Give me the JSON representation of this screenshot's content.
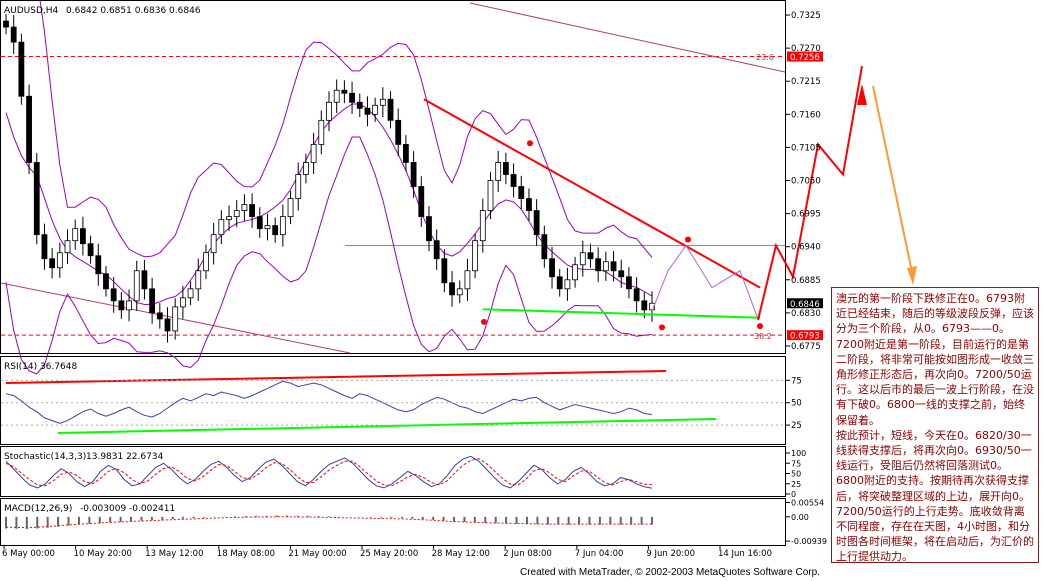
{
  "chart_data": [
    {
      "type": "candlestick",
      "symbol_label": "AUDUSD,H4",
      "ohlc_label": "0.6842 0.6851 0.6836 0.6846",
      "y_ticks": [
        "0.7325",
        "0.7270",
        "0.7215",
        "0.7160",
        "0.7105",
        "0.7050",
        "0.6995",
        "0.6940",
        "0.6885",
        "0.6830",
        "0.6775"
      ],
      "ylim": [
        0.6765,
        0.7345
      ],
      "price_tags": {
        "current": "0.6846",
        "high_level": "0.7256",
        "low_level": "0.6793"
      },
      "fib_labels": {
        "top": "23.6",
        "bottom": "38.2"
      },
      "x_ticks": [
        "6 May 00:00",
        "10 May 20:00",
        "13 May 12:00",
        "18 May 08:00",
        "21 May 00:00",
        "25 May 20:00",
        "28 May 12:00",
        "2 Jun 08:00",
        "7 Jun 04:00",
        "9 Jun 20:00",
        "14 Jun 16:00"
      ],
      "close_path": [
        0.7305,
        0.728,
        0.719,
        0.708,
        0.696,
        0.692,
        0.6905,
        0.693,
        0.695,
        0.697,
        0.6945,
        0.6925,
        0.6895,
        0.687,
        0.685,
        0.6835,
        0.685,
        0.69,
        0.687,
        0.683,
        0.682,
        0.68,
        0.684,
        0.6855,
        0.687,
        0.69,
        0.693,
        0.696,
        0.6985,
        0.699,
        0.7,
        0.701,
        0.699,
        0.697,
        0.6975,
        0.696,
        0.699,
        0.702,
        0.706,
        0.708,
        0.711,
        0.715,
        0.718,
        0.72,
        0.7195,
        0.718,
        0.717,
        0.716,
        0.7175,
        0.7185,
        0.715,
        0.711,
        0.708,
        0.704,
        0.699,
        0.695,
        0.692,
        0.688,
        0.686,
        0.687,
        0.69,
        0.695,
        0.7,
        0.705,
        0.708,
        0.706,
        0.704,
        0.702,
        0.7,
        0.696,
        0.692,
        0.689,
        0.687,
        0.6885,
        0.691,
        0.693,
        0.692,
        0.69,
        0.6915,
        0.69,
        0.689,
        0.687,
        0.685,
        0.6835,
        0.6846
      ]
    },
    {
      "type": "line",
      "title": "RSI(14) 36.7648",
      "y_ticks": [
        "75",
        "50",
        "25"
      ],
      "ylim": [
        5,
        100
      ],
      "values": [
        60,
        58,
        52,
        45,
        40,
        33,
        30,
        27,
        30,
        35,
        40,
        43,
        38,
        35,
        38,
        42,
        45,
        40,
        36,
        34,
        38,
        44,
        50,
        55,
        52,
        56,
        60,
        58,
        62,
        60,
        58,
        55,
        58,
        62,
        66,
        70,
        74,
        72,
        68,
        70,
        72,
        70,
        66,
        62,
        58,
        55,
        60,
        58,
        54,
        50,
        46,
        42,
        40,
        42,
        48,
        52,
        56,
        54,
        50,
        46,
        44,
        40,
        38,
        42,
        46,
        50,
        54,
        52,
        55,
        56,
        50,
        46,
        42,
        45,
        48,
        46,
        44,
        42,
        40,
        38,
        40,
        44,
        42,
        38,
        36.8
      ]
    },
    {
      "type": "line",
      "title": "Stochastic(14,3,3)",
      "label_values": "13.9831 22.6734",
      "y_ticks": [
        "100",
        "75",
        "50",
        "25",
        "0"
      ],
      "ylim": [
        0,
        100
      ],
      "series": [
        {
          "values": [
            80,
            60,
            40,
            22,
            15,
            25,
            45,
            62,
            50,
            30,
            18,
            30,
            55,
            70,
            60,
            35,
            20,
            25,
            45,
            65,
            75,
            60,
            40,
            25,
            35,
            55,
            72,
            80,
            65,
            45,
            30,
            40,
            60,
            78,
            85,
            70,
            50,
            30,
            20,
            35,
            55,
            72,
            80,
            88,
            75,
            55,
            35,
            20,
            15,
            25,
            40,
            55,
            45,
            30,
            18,
            25,
            45,
            70,
            85,
            92,
            80,
            60,
            40,
            22,
            15,
            30,
            50,
            70,
            60,
            40,
            25,
            35,
            55,
            65,
            50,
            30,
            20,
            25,
            40,
            35,
            25,
            18,
            14
          ]
        },
        {
          "values": [
            75,
            66,
            50,
            35,
            22,
            20,
            32,
            48,
            54,
            45,
            30,
            25,
            38,
            55,
            62,
            52,
            35,
            25,
            32,
            48,
            62,
            66,
            55,
            38,
            32,
            42,
            58,
            72,
            70,
            55,
            40,
            36,
            48,
            64,
            76,
            75,
            60,
            42,
            28,
            28,
            42,
            58,
            70,
            80,
            80,
            65,
            48,
            32,
            22,
            20,
            30,
            42,
            48,
            40,
            28,
            22,
            32,
            52,
            70,
            82,
            86,
            74,
            56,
            38,
            24,
            22,
            36,
            56,
            62,
            52,
            36,
            30,
            44,
            56,
            56,
            42,
            28,
            22,
            30,
            36,
            30,
            24,
            22.7
          ]
        }
      ]
    },
    {
      "type": "bar",
      "title": "MACD(12,26,9)",
      "label_values": "-0.003009 -0.002411",
      "y_ticks": [
        "0.00554",
        "0.00",
        "-0.00939"
      ],
      "ylim": [
        -0.0105,
        0.0065
      ],
      "values": [
        -0.0045,
        -0.0046,
        -0.0047,
        -0.0045,
        -0.0042,
        -0.0038,
        -0.0034,
        -0.003,
        -0.0028,
        -0.0025,
        -0.0022,
        -0.002,
        -0.0017,
        -0.0015,
        -0.0013,
        -0.0011,
        -0.0009,
        -0.0007,
        -0.0005,
        -0.0003,
        -0.0001,
        0.0001,
        0.0002,
        0.0003,
        0.0004,
        0.0004,
        0.0005,
        0.0005,
        0.0004,
        0.0004,
        0.0003,
        0.0002,
        0.0001,
        0.0,
        -0.0001,
        -0.0002,
        -0.0003,
        -0.0004,
        -0.0005,
        -0.0007,
        -0.0009,
        -0.0012,
        -0.0015,
        -0.0018,
        -0.002,
        -0.0022,
        -0.0024,
        -0.0025,
        -0.0026,
        -0.0027,
        -0.0028,
        -0.0029,
        -0.003,
        -0.003,
        -0.003,
        -0.003,
        -0.003,
        -0.003,
        -0.003,
        -0.003,
        -0.003,
        -0.003,
        -0.003
      ]
    }
  ],
  "annotation": {
    "paragraphs": [
      "澳元的第一阶段下跌修正在0。6793附近已经结束，随后的等级波段反弹，应该分为三个阶段，从0。6793——0。7200附近是第一阶段，目前运行的是第二阶段，将非常可能按如图形成一收敛三角形修正形态后，再次向0。7200/50运行。这以后市的最后一波上行阶段，在没有下破0。6800一线的支撑之前，始终保留着。",
      "按此预计，短线，今天在0。6820/30一线获得支撑后，将再次向0。6930/50一线运行，受阻后仍然将回落测试0。6800附近的支持。按期待再次获得支撑后，将突破整理区域的上边，展开向0。7200/50运行的上行走势。底收敛背离不同程度，存在在天图，4小时图，和分时图各时间框架，将在启动后，为汇价的上行提供动力。"
    ]
  },
  "footer": {
    "credit": "Created with MetaTrader, © 2002-2003 MetaQuotes Software Corp."
  },
  "colors": {
    "red": "#ff0000",
    "green": "#00ff00",
    "violet": "#9900cc",
    "magenta": "#cc44cc",
    "candle": "#000000",
    "blue": "#3344aa"
  }
}
